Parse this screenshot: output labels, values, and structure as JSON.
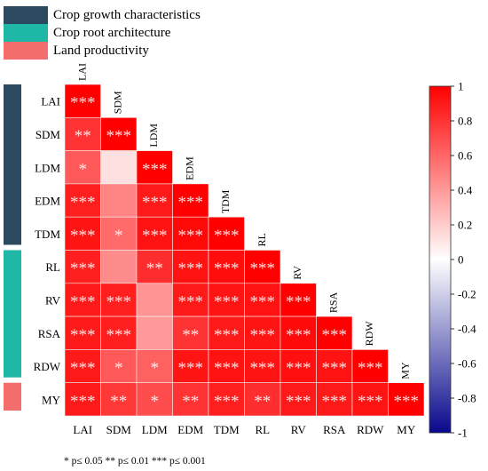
{
  "legend": [
    {
      "label": "Crop growth characteristics",
      "color": "#2b4a5f"
    },
    {
      "label": "Crop root architecture",
      "color": "#1fb8a7"
    },
    {
      "label": "Land productivity",
      "color": "#f46d6d"
    }
  ],
  "group_bars": [
    {
      "group": "Crop growth characteristics",
      "from": "LAI",
      "to": "TDM"
    },
    {
      "group": "Crop root architecture",
      "from": "RL",
      "to": "RDW"
    },
    {
      "group": "Land productivity",
      "from": "MY",
      "to": "MY"
    }
  ],
  "footnote": "* p≤ 0.05  ** p≤ 0.01  *** p≤ 0.001",
  "chart_data": {
    "type": "heatmap",
    "variables": [
      "LAI",
      "SDM",
      "LDM",
      "EDM",
      "TDM",
      "RL",
      "RV",
      "RSA",
      "RDW",
      "MY"
    ],
    "layout": "lower-triangle",
    "colorbar": {
      "range": [
        -1,
        1
      ],
      "ticks": [
        1,
        0.8,
        0.6,
        0.4,
        0.2,
        0,
        -0.2,
        -0.4,
        -0.6,
        -0.8,
        -1
      ],
      "tick_labels": [
        "1",
        "0.8",
        "0.6",
        "0.4",
        "0.2",
        "0",
        "-0.2",
        "-0.4",
        "-0.6",
        "-0.8",
        "-1"
      ],
      "low_color": "#08088c",
      "mid_color": "#ffffff",
      "high_color": "#ff0000"
    },
    "cells": [
      {
        "row": "LAI",
        "col": "LAI",
        "r": 1.0,
        "sig": "***"
      },
      {
        "row": "SDM",
        "col": "LAI",
        "r": 0.8,
        "sig": "**"
      },
      {
        "row": "SDM",
        "col": "SDM",
        "r": 1.0,
        "sig": "***"
      },
      {
        "row": "LDM",
        "col": "LAI",
        "r": 0.65,
        "sig": "*"
      },
      {
        "row": "LDM",
        "col": "SDM",
        "r": 0.12,
        "sig": ""
      },
      {
        "row": "LDM",
        "col": "LDM",
        "r": 1.0,
        "sig": "***"
      },
      {
        "row": "EDM",
        "col": "LAI",
        "r": 0.88,
        "sig": "***"
      },
      {
        "row": "EDM",
        "col": "SDM",
        "r": 0.48,
        "sig": ""
      },
      {
        "row": "EDM",
        "col": "LDM",
        "r": 0.9,
        "sig": "***"
      },
      {
        "row": "EDM",
        "col": "EDM",
        "r": 1.0,
        "sig": "***"
      },
      {
        "row": "TDM",
        "col": "LAI",
        "r": 0.92,
        "sig": "***"
      },
      {
        "row": "TDM",
        "col": "SDM",
        "r": 0.58,
        "sig": "*"
      },
      {
        "row": "TDM",
        "col": "LDM",
        "r": 0.93,
        "sig": "***"
      },
      {
        "row": "TDM",
        "col": "EDM",
        "r": 0.97,
        "sig": "***"
      },
      {
        "row": "TDM",
        "col": "TDM",
        "r": 1.0,
        "sig": "***"
      },
      {
        "row": "RL",
        "col": "LAI",
        "r": 0.88,
        "sig": "***"
      },
      {
        "row": "RL",
        "col": "SDM",
        "r": 0.45,
        "sig": ""
      },
      {
        "row": "RL",
        "col": "LDM",
        "r": 0.82,
        "sig": "**"
      },
      {
        "row": "RL",
        "col": "EDM",
        "r": 0.93,
        "sig": "***"
      },
      {
        "row": "RL",
        "col": "TDM",
        "r": 0.95,
        "sig": "***"
      },
      {
        "row": "RL",
        "col": "RL",
        "r": 1.0,
        "sig": "***"
      },
      {
        "row": "RV",
        "col": "LAI",
        "r": 0.9,
        "sig": "***"
      },
      {
        "row": "RV",
        "col": "SDM",
        "r": 0.88,
        "sig": "***"
      },
      {
        "row": "RV",
        "col": "LDM",
        "r": 0.42,
        "sig": ""
      },
      {
        "row": "RV",
        "col": "EDM",
        "r": 0.9,
        "sig": "***"
      },
      {
        "row": "RV",
        "col": "TDM",
        "r": 0.92,
        "sig": "***"
      },
      {
        "row": "RV",
        "col": "RL",
        "r": 0.93,
        "sig": "***"
      },
      {
        "row": "RV",
        "col": "RV",
        "r": 1.0,
        "sig": "***"
      },
      {
        "row": "RSA",
        "col": "LAI",
        "r": 0.9,
        "sig": "***"
      },
      {
        "row": "RSA",
        "col": "SDM",
        "r": 0.88,
        "sig": "***"
      },
      {
        "row": "RSA",
        "col": "LDM",
        "r": 0.4,
        "sig": ""
      },
      {
        "row": "RSA",
        "col": "EDM",
        "r": 0.8,
        "sig": "**"
      },
      {
        "row": "RSA",
        "col": "TDM",
        "r": 0.9,
        "sig": "***"
      },
      {
        "row": "RSA",
        "col": "RL",
        "r": 0.92,
        "sig": "***"
      },
      {
        "row": "RSA",
        "col": "RV",
        "r": 0.96,
        "sig": "***"
      },
      {
        "row": "RSA",
        "col": "RSA",
        "r": 1.0,
        "sig": "***"
      },
      {
        "row": "RDW",
        "col": "LAI",
        "r": 0.9,
        "sig": "***"
      },
      {
        "row": "RDW",
        "col": "SDM",
        "r": 0.65,
        "sig": "*"
      },
      {
        "row": "RDW",
        "col": "LDM",
        "r": 0.62,
        "sig": "*"
      },
      {
        "row": "RDW",
        "col": "EDM",
        "r": 0.92,
        "sig": "***"
      },
      {
        "row": "RDW",
        "col": "TDM",
        "r": 0.93,
        "sig": "***"
      },
      {
        "row": "RDW",
        "col": "RL",
        "r": 0.92,
        "sig": "***"
      },
      {
        "row": "RDW",
        "col": "RV",
        "r": 0.94,
        "sig": "***"
      },
      {
        "row": "RDW",
        "col": "RSA",
        "r": 0.93,
        "sig": "***"
      },
      {
        "row": "RDW",
        "col": "RDW",
        "r": 1.0,
        "sig": "***"
      },
      {
        "row": "MY",
        "col": "LAI",
        "r": 0.9,
        "sig": "***"
      },
      {
        "row": "MY",
        "col": "SDM",
        "r": 0.78,
        "sig": "**"
      },
      {
        "row": "MY",
        "col": "LDM",
        "r": 0.7,
        "sig": "*"
      },
      {
        "row": "MY",
        "col": "EDM",
        "r": 0.8,
        "sig": "**"
      },
      {
        "row": "MY",
        "col": "TDM",
        "r": 0.88,
        "sig": "***"
      },
      {
        "row": "MY",
        "col": "RL",
        "r": 0.82,
        "sig": "**"
      },
      {
        "row": "MY",
        "col": "RV",
        "r": 0.9,
        "sig": "***"
      },
      {
        "row": "MY",
        "col": "RSA",
        "r": 0.9,
        "sig": "***"
      },
      {
        "row": "MY",
        "col": "RDW",
        "r": 0.92,
        "sig": "***"
      },
      {
        "row": "MY",
        "col": "MY",
        "r": 1.0,
        "sig": "***"
      }
    ]
  }
}
